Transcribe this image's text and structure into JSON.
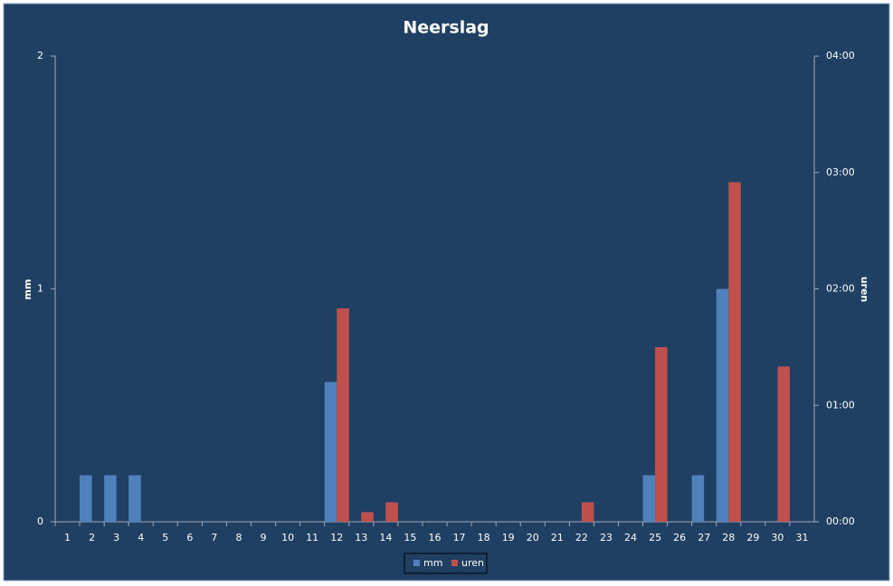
{
  "chart_data": {
    "type": "bar",
    "title": "Neerslag",
    "y_label": "mm",
    "y2_label": "uren",
    "categories": [
      "1",
      "2",
      "3",
      "4",
      "5",
      "6",
      "7",
      "8",
      "9",
      "10",
      "11",
      "12",
      "13",
      "14",
      "15",
      "16",
      "17",
      "18",
      "19",
      "20",
      "21",
      "22",
      "23",
      "24",
      "25",
      "26",
      "27",
      "28",
      "29",
      "30",
      "31"
    ],
    "series": [
      {
        "name": "mm",
        "color": "#4f81bd",
        "values": [
          0,
          0.2,
          0.2,
          0.2,
          0,
          0,
          0,
          0,
          0,
          0,
          0,
          0.6,
          0,
          0,
          0,
          0,
          0,
          0,
          0,
          0,
          0,
          0,
          0,
          0,
          0.2,
          0,
          0.2,
          1.0,
          0,
          0,
          0
        ]
      },
      {
        "name": "uren",
        "color": "#c0504d",
        "axis": "y2",
        "values": [
          0,
          0,
          0,
          0,
          0,
          0,
          0,
          0,
          0,
          0,
          0,
          1.833,
          0.083,
          0.167,
          0,
          0,
          0,
          0,
          0,
          0,
          0,
          0.167,
          0,
          0,
          1.5,
          0,
          0,
          2.917,
          0,
          1.333,
          0
        ]
      }
    ],
    "ylim": [
      0,
      2
    ],
    "yticks": [
      0,
      1,
      2
    ],
    "y2lim": [
      0,
      4
    ],
    "y2ticks": [
      {
        "value": 0,
        "label": "00:00"
      },
      {
        "value": 1,
        "label": "01:00"
      },
      {
        "value": 2,
        "label": "02:00"
      },
      {
        "value": 3,
        "label": "03:00"
      },
      {
        "value": 4,
        "label": "04:00"
      }
    ],
    "legend": "bottom"
  }
}
